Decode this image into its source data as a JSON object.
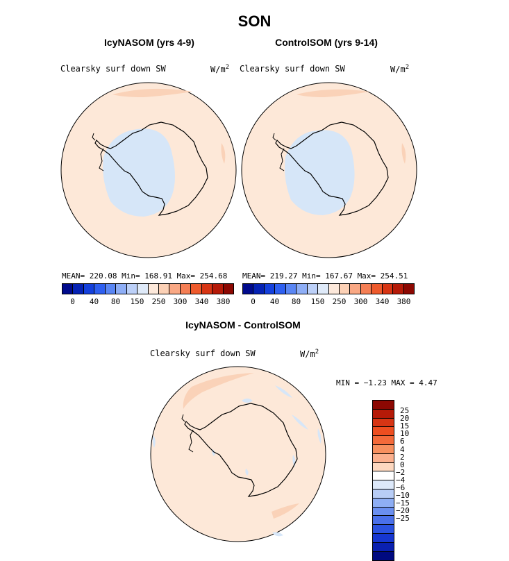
{
  "season": "SON",
  "panels": [
    {
      "title": "IcyNASOM (yrs 4-9)",
      "variable": "Clearsky surf down SW",
      "units": "W/m",
      "units_exp": "2",
      "stats": "MEAN= 220.08  Min= 168.91  Max= 254.68"
    },
    {
      "title": "ControlSOM (yrs 9-14)",
      "variable": "Clearsky surf down SW",
      "units": "W/m",
      "units_exp": "2",
      "stats": "MEAN= 219.27  Min= 167.67  Max= 254.51"
    }
  ],
  "diff": {
    "title": "IcyNASOM - ControlSOM",
    "variable": "Clearsky surf down SW",
    "units": "W/m",
    "units_exp": "2",
    "stats": "MIN =  −1.23 MAX =   4.47"
  },
  "colorbar": {
    "colors": [
      "#000a8c",
      "#0522b4",
      "#1440dc",
      "#2e5ff0",
      "#5a86f4",
      "#8eaef6",
      "#bcd0f8",
      "#dfeaf9",
      "#fde9db",
      "#fcd1b6",
      "#f9a884",
      "#f57f55",
      "#ee5a2c",
      "#d73514",
      "#b51a08",
      "#8c0802"
    ],
    "labels": [
      "0",
      "40",
      "80",
      "150",
      "250",
      "300",
      "340",
      "380"
    ]
  },
  "diff_colorbar": {
    "colors": [
      "#8c0802",
      "#b51a08",
      "#d73514",
      "#ee4e20",
      "#f46a3a",
      "#f7905f",
      "#fbb08e",
      "#fdd8c0",
      "#ffffff",
      "#dde9fa",
      "#b8cdf6",
      "#8eaef4",
      "#6a8ff0",
      "#4a70ea",
      "#2b52e0",
      "#1636d0",
      "#0a20b0",
      "#000a80"
    ],
    "labels": [
      "25",
      "20",
      "15",
      "10",
      "6",
      "4",
      "2",
      "0",
      "−2",
      "−4",
      "−6",
      "−10",
      "−15",
      "−20",
      "−25"
    ]
  }
}
